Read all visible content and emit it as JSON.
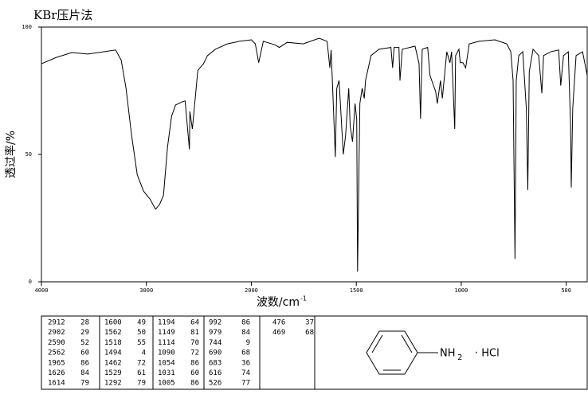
{
  "chart_data": {
    "type": "line",
    "title": "KBr压片法",
    "y_label": "透过率/%",
    "x_label": "波数/cm",
    "x_label_sup": "-1",
    "xlim": [
      4000,
      400
    ],
    "xticks": [
      4000,
      3000,
      2000,
      1500,
      1000,
      500
    ],
    "ylim": [
      0,
      100
    ],
    "yticks": [
      0,
      50,
      100
    ],
    "grid": false,
    "x": [
      4000,
      3863,
      3711,
      3559,
      3407,
      3293,
      3240,
      3194,
      3141,
      3087,
      3027,
      2966,
      2913,
      2875,
      2837,
      2799,
      2760,
      2722,
      2662,
      2631,
      2590,
      2586,
      2562,
      2510,
      2456,
      2418,
      2342,
      2228,
      2114,
      2000,
      1981,
      1965,
      1943,
      1886,
      1867,
      1829,
      1753,
      1677,
      1639,
      1626,
      1620,
      1614,
      1600,
      1593,
      1582,
      1562,
      1551,
      1536,
      1529,
      1518,
      1506,
      1498,
      1494,
      1483,
      1472,
      1462,
      1456,
      1430,
      1392,
      1335,
      1327,
      1320,
      1297,
      1292,
      1281,
      1220,
      1201,
      1194,
      1186,
      1160,
      1149,
      1122,
      1114,
      1099,
      1090,
      1069,
      1054,
      1046,
      1031,
      1027,
      1011,
      1005,
      992,
      979,
      962,
      916,
      840,
      783,
      764,
      753,
      744,
      738,
      726,
      707,
      690,
      683,
      676,
      658,
      631,
      616,
      608,
      574,
      536,
      526,
      513,
      490,
      479,
      476,
      469,
      453,
      422,
      400
    ],
    "series": [
      {
        "name": "spectrum",
        "color": "#000000",
        "values": [
          85.6,
          88,
          90,
          89.4,
          90.3,
          91,
          87,
          76,
          57.5,
          42,
          35.6,
          32.5,
          28.5,
          30.3,
          34,
          52.8,
          65,
          69.4,
          70.6,
          71,
          52,
          66.9,
          60,
          83,
          85.6,
          88.8,
          91.3,
          93.4,
          94.4,
          95,
          93.4,
          86,
          94.4,
          93,
          92,
          94,
          93.4,
          95.6,
          94.4,
          84,
          91,
          79,
          49,
          76,
          79,
          50,
          57.5,
          76,
          61,
          55,
          70,
          63.8,
          4,
          70,
          76,
          72,
          79,
          88.8,
          91.3,
          92,
          84,
          92,
          92,
          79,
          91.3,
          92.5,
          85.6,
          64,
          91.3,
          92,
          81,
          74.7,
          70,
          79,
          72,
          90.3,
          86,
          90.3,
          60,
          88.8,
          91.3,
          86,
          86,
          84,
          93.4,
          94.4,
          95,
          93.4,
          90.3,
          79,
          9,
          79,
          88.8,
          90.3,
          68,
          36,
          82.5,
          91.3,
          88.8,
          74,
          88.8,
          90.3,
          91,
          77,
          88.8,
          90.3,
          60.6,
          37,
          68,
          88.8,
          90.3,
          81
        ]
      }
    ]
  },
  "peak_table": [
    [
      [
        2912,
        28
      ],
      [
        2902,
        29
      ],
      [
        2590,
        52
      ],
      [
        2562,
        60
      ],
      [
        1965,
        86
      ],
      [
        1626,
        84
      ],
      [
        1614,
        79
      ]
    ],
    [
      [
        1600,
        49
      ],
      [
        1562,
        50
      ],
      [
        1518,
        55
      ],
      [
        1494,
        4
      ],
      [
        1462,
        72
      ],
      [
        1529,
        61
      ],
      [
        1292,
        79
      ]
    ],
    [
      [
        1194,
        64
      ],
      [
        1149,
        81
      ],
      [
        1114,
        70
      ],
      [
        1090,
        72
      ],
      [
        1054,
        86
      ],
      [
        1031,
        60
      ],
      [
        1005,
        86
      ]
    ],
    [
      [
        992,
        86
      ],
      [
        979,
        84
      ],
      [
        744,
        9
      ],
      [
        690,
        68
      ],
      [
        683,
        36
      ],
      [
        616,
        74
      ],
      [
        526,
        77
      ]
    ],
    [
      [
        476,
        37
      ],
      [
        469,
        68
      ]
    ]
  ],
  "structure": {
    "group": "NH",
    "subscript": "2",
    "salt": "· HCl"
  }
}
